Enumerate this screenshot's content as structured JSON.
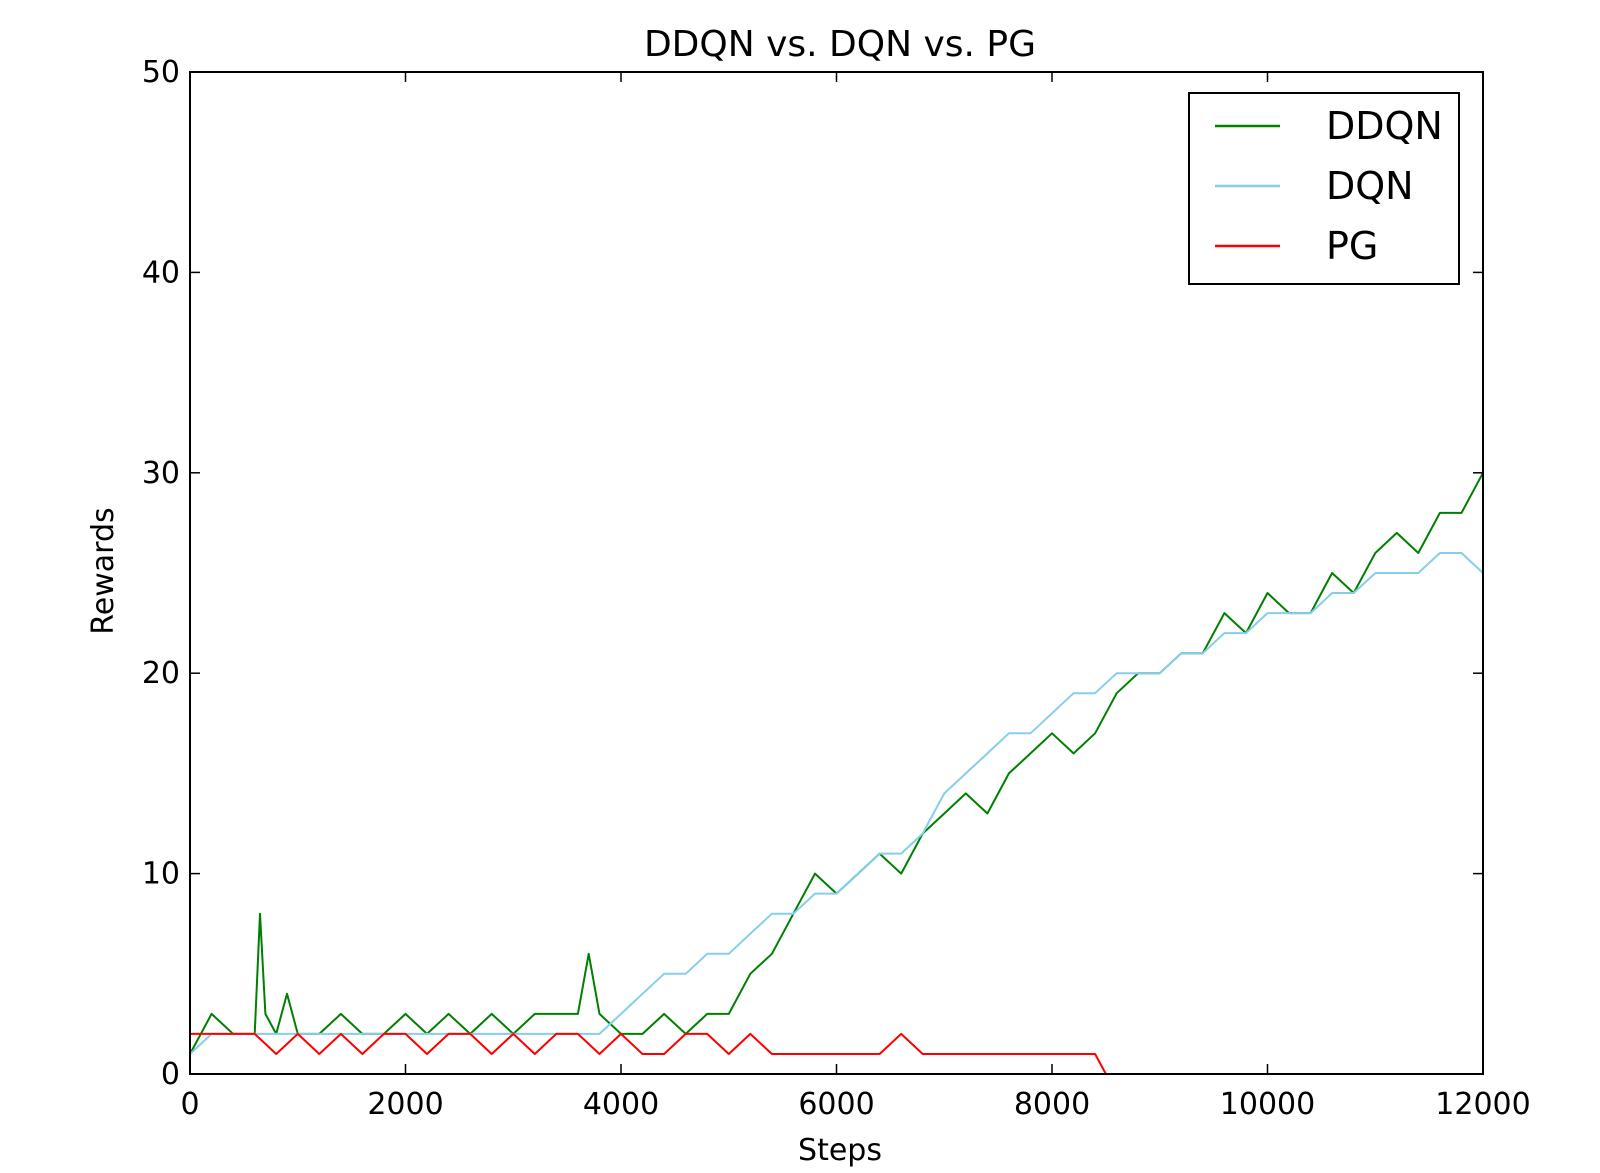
{
  "chart_data": {
    "type": "line",
    "title": "DDQN vs. DQN vs. PG",
    "xlabel": "Steps",
    "ylabel": "Rewards",
    "xlim": [
      0,
      12000
    ],
    "ylim": [
      0,
      50
    ],
    "xticks": [
      0,
      2000,
      4000,
      6000,
      8000,
      10000,
      12000
    ],
    "yticks": [
      0,
      10,
      20,
      30,
      40,
      50
    ],
    "legend_position": "top-right",
    "grid": false,
    "series": [
      {
        "name": "DDQN",
        "color": "#008000",
        "x": [
          0,
          200,
          400,
          600,
          650,
          700,
          800,
          900,
          1000,
          1200,
          1400,
          1600,
          1800,
          2000,
          2200,
          2400,
          2600,
          2800,
          3000,
          3200,
          3400,
          3600,
          3700,
          3800,
          4000,
          4200,
          4400,
          4600,
          4800,
          5000,
          5200,
          5400,
          5600,
          5800,
          6000,
          6200,
          6400,
          6600,
          6800,
          7000,
          7200,
          7400,
          7600,
          7800,
          8000,
          8200,
          8400,
          8600,
          8800,
          9000,
          9200,
          9400,
          9600,
          9800,
          10000,
          10200,
          10400,
          10600,
          10800,
          11000,
          11200,
          11400,
          11600,
          11800,
          12000
        ],
        "values": [
          1,
          3,
          2,
          2,
          8,
          3,
          2,
          4,
          2,
          2,
          3,
          2,
          2,
          3,
          2,
          3,
          2,
          3,
          2,
          3,
          3,
          3,
          6,
          3,
          2,
          2,
          3,
          2,
          3,
          3,
          5,
          6,
          8,
          10,
          9,
          10,
          11,
          10,
          12,
          13,
          14,
          13,
          15,
          16,
          17,
          16,
          17,
          19,
          20,
          20,
          21,
          21,
          23,
          22,
          24,
          23,
          23,
          25,
          24,
          26,
          27,
          26,
          28,
          28,
          30
        ]
      },
      {
        "name": "DQN",
        "color": "#87ceeb",
        "x": [
          0,
          200,
          400,
          600,
          800,
          1000,
          1200,
          1400,
          1600,
          1800,
          2000,
          2200,
          2400,
          2600,
          2800,
          3000,
          3200,
          3400,
          3600,
          3800,
          4000,
          4200,
          4400,
          4600,
          4800,
          5000,
          5200,
          5400,
          5600,
          5800,
          6000,
          6200,
          6400,
          6600,
          6800,
          7000,
          7200,
          7400,
          7600,
          7800,
          8000,
          8200,
          8400,
          8600,
          8800,
          9000,
          9200,
          9400,
          9600,
          9800,
          10000,
          10200,
          10400,
          10600,
          10800,
          11000,
          11200,
          11400,
          11600,
          11800,
          12000
        ],
        "values": [
          1,
          2,
          2,
          2,
          2,
          2,
          2,
          2,
          2,
          2,
          2,
          2,
          2,
          2,
          2,
          2,
          2,
          2,
          2,
          2,
          3,
          4,
          5,
          5,
          6,
          6,
          7,
          8,
          8,
          9,
          9,
          10,
          11,
          11,
          12,
          14,
          15,
          16,
          17,
          17,
          18,
          19,
          19,
          20,
          20,
          20,
          21,
          21,
          22,
          22,
          23,
          23,
          23,
          24,
          24,
          25,
          25,
          25,
          26,
          26,
          25
        ]
      },
      {
        "name": "PG",
        "color": "#ff0000",
        "x": [
          0,
          200,
          400,
          600,
          800,
          1000,
          1200,
          1400,
          1600,
          1800,
          2000,
          2200,
          2400,
          2600,
          2800,
          3000,
          3200,
          3400,
          3600,
          3800,
          4000,
          4200,
          4400,
          4600,
          4800,
          5000,
          5200,
          5400,
          5600,
          5800,
          6000,
          6200,
          6400,
          6600,
          6800,
          7000,
          7200,
          7400,
          7600,
          7800,
          8000,
          8200,
          8400,
          8500
        ],
        "values": [
          2,
          2,
          2,
          2,
          1,
          2,
          1,
          2,
          1,
          2,
          2,
          1,
          2,
          2,
          1,
          2,
          1,
          2,
          2,
          1,
          2,
          1,
          1,
          2,
          2,
          1,
          2,
          1,
          1,
          1,
          1,
          1,
          1,
          2,
          1,
          1,
          1,
          1,
          1,
          1,
          1,
          1,
          1,
          0
        ]
      }
    ]
  }
}
